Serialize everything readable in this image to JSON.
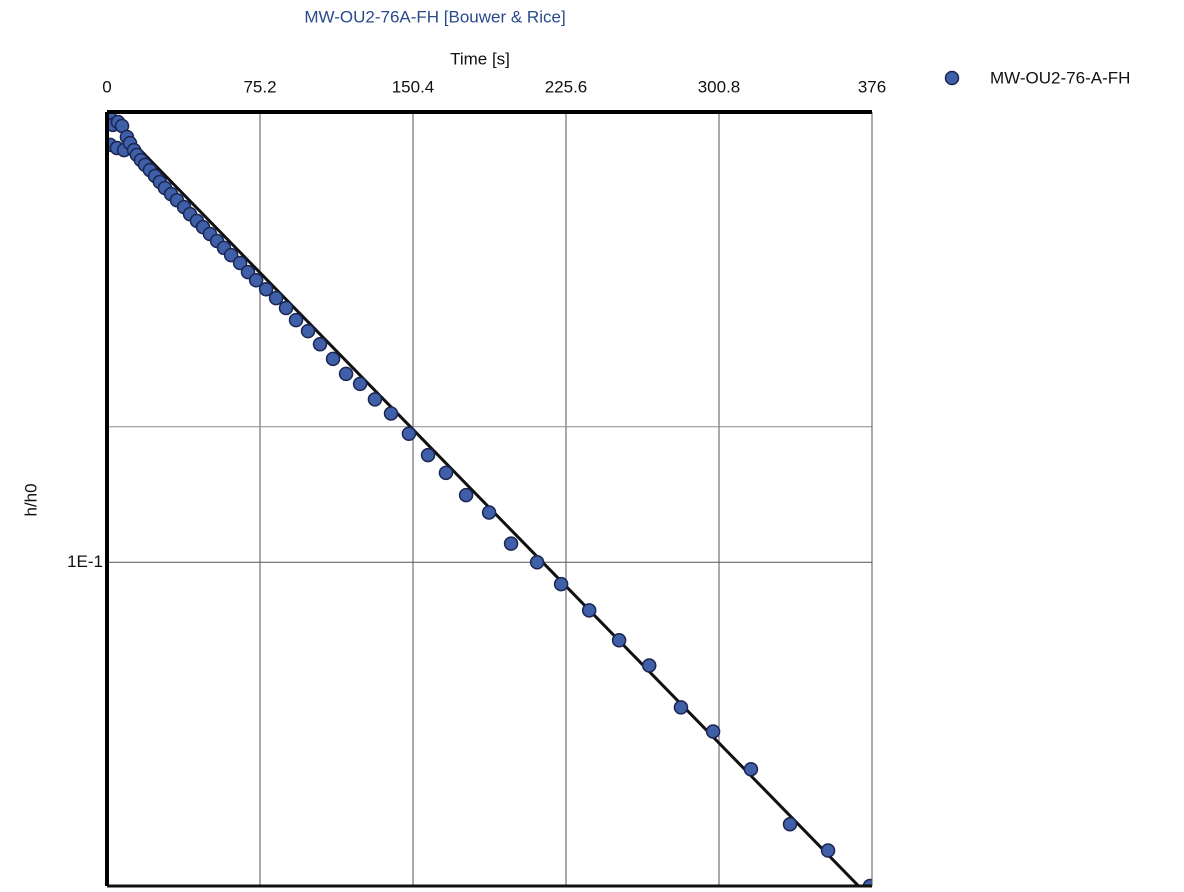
{
  "chart_data": {
    "type": "scatter",
    "title": "MW-OU2-76A-FH [Bouwer & Rice]",
    "xlabel": "Time [s]",
    "ylabel": "h/h0",
    "xlim": [
      0,
      376
    ],
    "xticks": [
      0,
      75.2,
      150.4,
      225.6,
      300.8,
      376
    ],
    "ylim": [
      0.0191,
      1
    ],
    "yscale": "log",
    "yticks": [
      {
        "value": 0.1,
        "label": "1E-1"
      }
    ],
    "ygrid_extra": [
      0.2
    ],
    "grid": true,
    "legend": "right",
    "series": [
      {
        "name": "MW-OU2-76-A-FH",
        "color": "#3f5fa8",
        "x": [
          1.5,
          2.9,
          5.4,
          7.4,
          1.5,
          4.9,
          8.4,
          9.8,
          11.3,
          13.3,
          14.7,
          16.7,
          18.7,
          21.1,
          23.6,
          26.0,
          28.5,
          31.5,
          34.4,
          37.9,
          40.8,
          44.2,
          47.2,
          50.6,
          54.1,
          57.5,
          61.0,
          65.4,
          69.3,
          73.3,
          78.2,
          83.1,
          88.0,
          92.9,
          98.8,
          104.7,
          111.1,
          117.5,
          124.4,
          131.7,
          139.6,
          148.4,
          157.8,
          166.6,
          176.5,
          187.8,
          198.6,
          211.4,
          223.2,
          237.0,
          251.7,
          266.5,
          282.1,
          297.9,
          316.5,
          335.7,
          354.4,
          375.0
        ],
        "values": [
          0.97,
          0.936,
          0.95,
          0.931,
          0.845,
          0.832,
          0.823,
          0.88,
          0.853,
          0.823,
          0.803,
          0.782,
          0.763,
          0.743,
          0.721,
          0.699,
          0.678,
          0.657,
          0.637,
          0.615,
          0.593,
          0.573,
          0.555,
          0.536,
          0.517,
          0.499,
          0.481,
          0.462,
          0.441,
          0.423,
          0.404,
          0.386,
          0.367,
          0.345,
          0.326,
          0.305,
          0.283,
          0.262,
          0.249,
          0.23,
          0.214,
          0.193,
          0.173,
          0.158,
          0.141,
          0.129,
          0.11,
          0.1,
          0.0894,
          0.0782,
          0.0671,
          0.059,
          0.0476,
          0.0421,
          0.0347,
          0.0262,
          0.0229,
          0.0191
        ]
      }
    ],
    "fit_line": {
      "color": "#111111",
      "x": [
        0,
        376
      ],
      "values": [
        0.98,
        0.0178
      ]
    }
  }
}
